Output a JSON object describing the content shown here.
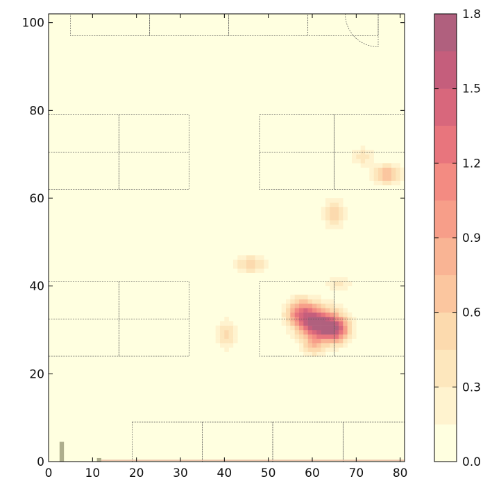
{
  "chart_data": {
    "type": "heatmap",
    "title": "",
    "xlabel": "",
    "ylabel": "",
    "xlim": [
      0,
      81
    ],
    "ylim": [
      0,
      102
    ],
    "x_ticks": [
      0,
      10,
      20,
      30,
      40,
      50,
      60,
      70,
      80
    ],
    "y_ticks": [
      0,
      20,
      40,
      60,
      80,
      100
    ],
    "grid": false,
    "colorbar": {
      "vmin": 0.0,
      "vmax": 1.8,
      "ticks": [
        "0.0",
        "0.3",
        "0.6",
        "0.9",
        "1.2",
        "1.5",
        "1.8"
      ],
      "levels": 12,
      "colors": [
        "#ffffe0",
        "#fff3cf",
        "#fde7bd",
        "#fcdaae",
        "#fbc69f",
        "#f9b494",
        "#f79e89",
        "#f38b82",
        "#e8757d",
        "#d8677c",
        "#c55e7c",
        "#b0607e"
      ]
    },
    "hotspots": [
      {
        "x": 62,
        "y": 31,
        "peak": 1.8,
        "sx": 3.2,
        "sy": 2.6
      },
      {
        "x": 57.5,
        "y": 34,
        "peak": 1.1,
        "sx": 2.4,
        "sy": 2.2
      },
      {
        "x": 66,
        "y": 30,
        "peak": 0.8,
        "sx": 2.0,
        "sy": 2.0
      },
      {
        "x": 60,
        "y": 26,
        "peak": 0.45,
        "sx": 1.6,
        "sy": 1.4
      },
      {
        "x": 77,
        "y": 65.5,
        "peak": 0.75,
        "sx": 2.2,
        "sy": 1.6
      },
      {
        "x": 71.5,
        "y": 69.5,
        "peak": 0.4,
        "sx": 1.7,
        "sy": 1.5
      },
      {
        "x": 65,
        "y": 56.5,
        "peak": 0.6,
        "sx": 1.6,
        "sy": 2.4
      },
      {
        "x": 46,
        "y": 45,
        "peak": 0.55,
        "sx": 2.4,
        "sy": 1.5
      },
      {
        "x": 40.5,
        "y": 29,
        "peak": 0.55,
        "sx": 1.4,
        "sy": 2.2
      },
      {
        "x": 66,
        "y": 40.5,
        "peak": 0.4,
        "sx": 1.8,
        "sy": 1.3
      }
    ],
    "floorplan": {
      "rects": [
        [
          5,
          97,
          23,
          102
        ],
        [
          23,
          97,
          41,
          102
        ],
        [
          41,
          97,
          59,
          102
        ],
        [
          59,
          97,
          75,
          102
        ],
        [
          0,
          62,
          16,
          79
        ],
        [
          16,
          62,
          32,
          79
        ],
        [
          48,
          62,
          65,
          79
        ],
        [
          65,
          62,
          81,
          79
        ],
        [
          0,
          24,
          16,
          41
        ],
        [
          16,
          24,
          32,
          41
        ],
        [
          48,
          24,
          65,
          41
        ],
        [
          65,
          24,
          81,
          41
        ],
        [
          19,
          0,
          35,
          9
        ],
        [
          35,
          0,
          51,
          9
        ],
        [
          51,
          0,
          67,
          9
        ],
        [
          67,
          0,
          81,
          9
        ]
      ],
      "hlines": [
        [
          0,
          32,
          70.5
        ],
        [
          48,
          81,
          70.5
        ],
        [
          0,
          32,
          32.5
        ],
        [
          48,
          81,
          32.5
        ]
      ],
      "door_arc": {
        "cx": 75,
        "cy": 102,
        "r": 7.5
      }
    }
  }
}
